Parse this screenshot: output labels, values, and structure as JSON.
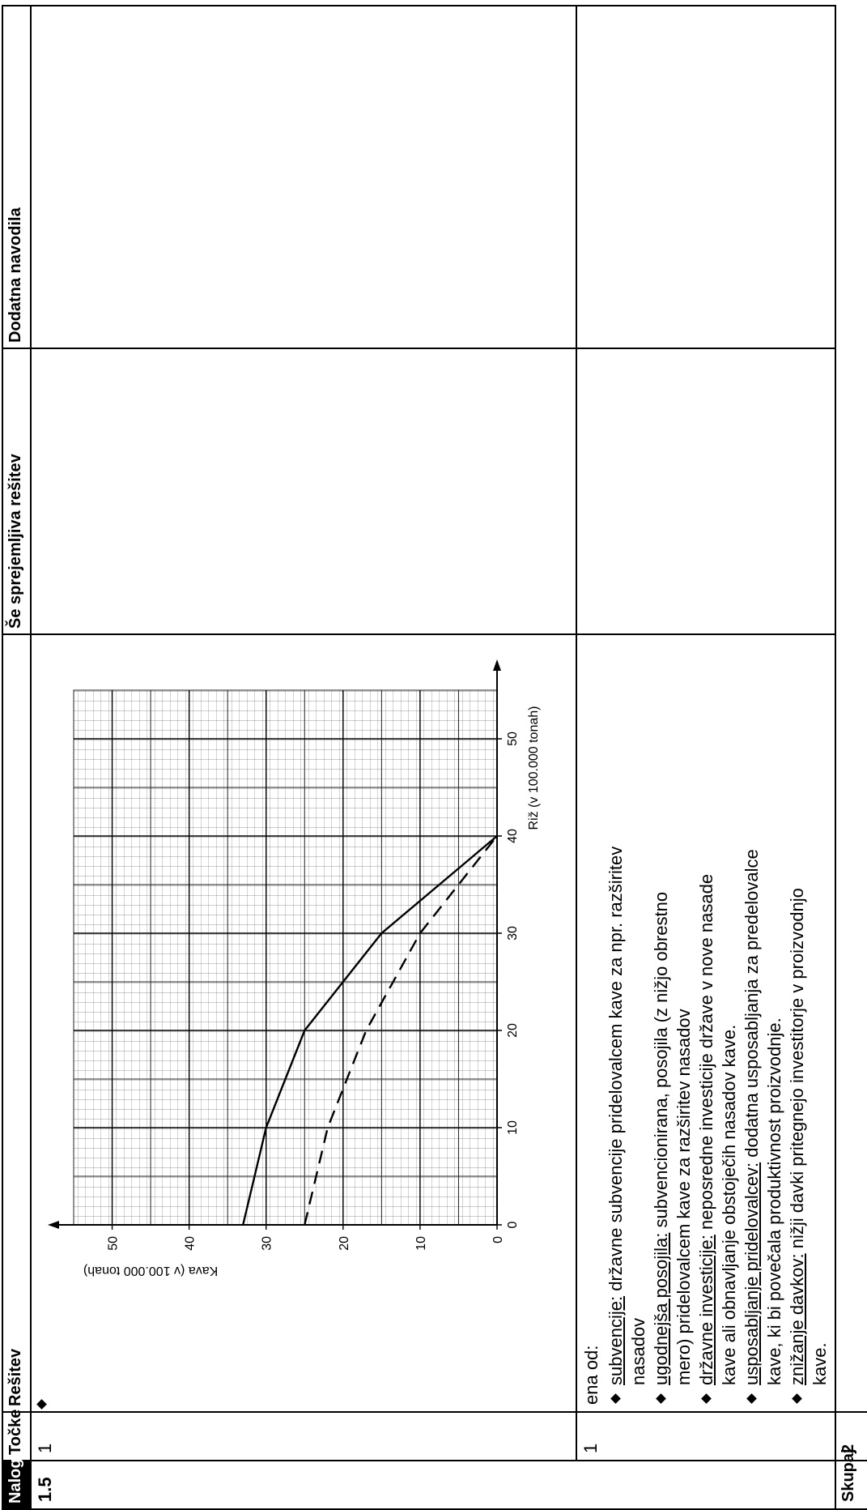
{
  "header": {
    "columns": [
      "Naloga",
      "Točke",
      "Rešitev",
      "Še sprejemljiva rešitev",
      "Dodatna navodila"
    ]
  },
  "rows": [
    {
      "task": "1.5",
      "parts": [
        {
          "points": 1,
          "chart": {
            "type": "line",
            "x": [
              0,
              10,
              20,
              30,
              40
            ],
            "series": [
              {
                "color": "#000000",
                "dash": false,
                "values": [
                  33,
                  30,
                  25,
                  15,
                  0
                ]
              },
              {
                "color": "#000000",
                "dash": true,
                "values": [
                  25,
                  22,
                  17,
                  10,
                  0
                ]
              }
            ],
            "xlabel": "Riž (v 100.000 tonah)",
            "ylabel": "Kava (v 100.000 tonah)",
            "xlim": [
              0,
              55
            ],
            "ylim": [
              0,
              55
            ],
            "xticks": [
              0,
              10,
              20,
              30,
              40,
              50
            ],
            "yticks": [
              0,
              10,
              20,
              30,
              40,
              50
            ],
            "grid": true
          }
        },
        {
          "points": 1,
          "intro": "ena od:",
          "items": [
            {
              "term": "subvencije:",
              "text": "državne subvencije pridelovalcem kave za npr. razširitev nasadov"
            },
            {
              "term": "ugodnejša posojila:",
              "text": "subvencionirana, posojila (z nižjo obrestno mero) pridelovalcem kave za razširitev nasadov"
            },
            {
              "term": "državne investicije:",
              "text": "neposredne investicije države v nove nasade kave ali obnavljanje obstoječih nasadov kave."
            },
            {
              "term": "usposabljanje pridelovalcev:",
              "text": "dodatna usposabljanja za predelovalce kave, ki bi povečala produktivnost proizvodnje."
            },
            {
              "term": "znižanje davkov:",
              "text": "nižji davki pritegnejo investitorje v proizvodnjo kave."
            }
          ]
        }
      ]
    }
  ],
  "total": {
    "label": "Skupaj",
    "points": 2
  }
}
